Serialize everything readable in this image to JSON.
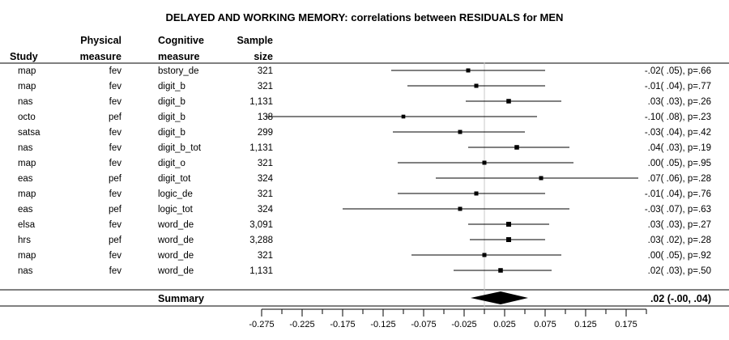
{
  "chart_data": {
    "type": "forest",
    "title": "DELAYED AND WORKING MEMORY: correlations between RESIDUALS for MEN",
    "columns": {
      "study": [
        "Study"
      ],
      "physical": [
        "Physical",
        "measure"
      ],
      "cognitive": [
        "Cognitive",
        "measure"
      ],
      "sample": [
        "Sample",
        "size"
      ]
    },
    "rows": [
      {
        "study": "map",
        "physical": "fev",
        "cognitive": "bstory_de",
        "n": "321",
        "est": -0.02,
        "lo": -0.115,
        "hi": 0.075,
        "label": "-.02( .05), p=.66"
      },
      {
        "study": "map",
        "physical": "fev",
        "cognitive": "digit_b",
        "n": "321",
        "est": -0.01,
        "lo": -0.095,
        "hi": 0.075,
        "label": "-.01( .04), p=.77"
      },
      {
        "study": "nas",
        "physical": "fev",
        "cognitive": "digit_b",
        "n": "1,131",
        "est": 0.03,
        "lo": -0.023,
        "hi": 0.095,
        "label": ".03( .03), p=.26"
      },
      {
        "study": "octo",
        "physical": "pef",
        "cognitive": "digit_b",
        "n": "138",
        "est": -0.1,
        "lo": -0.27,
        "hi": 0.065,
        "label": "-.10( .08), p=.23"
      },
      {
        "study": "satsa",
        "physical": "fev",
        "cognitive": "digit_b",
        "n": "299",
        "est": -0.03,
        "lo": -0.113,
        "hi": 0.05,
        "label": "-.03( .04), p=.42"
      },
      {
        "study": "nas",
        "physical": "fev",
        "cognitive": "digit_b_tot",
        "n": "1,131",
        "est": 0.04,
        "lo": -0.02,
        "hi": 0.105,
        "label": ".04( .03), p=.19"
      },
      {
        "study": "map",
        "physical": "fev",
        "cognitive": "digit_o",
        "n": "321",
        "est": 0.0,
        "lo": -0.107,
        "hi": 0.11,
        "label": ".00( .05), p=.95"
      },
      {
        "study": "eas",
        "physical": "pef",
        "cognitive": "digit_tot",
        "n": "324",
        "est": 0.07,
        "lo": -0.06,
        "hi": 0.19,
        "label": ".07( .06), p=.28"
      },
      {
        "study": "map",
        "physical": "fev",
        "cognitive": "logic_de",
        "n": "321",
        "est": -0.01,
        "lo": -0.107,
        "hi": 0.075,
        "label": "-.01( .04), p=.76"
      },
      {
        "study": "eas",
        "physical": "pef",
        "cognitive": "logic_tot",
        "n": "324",
        "est": -0.03,
        "lo": -0.175,
        "hi": 0.105,
        "label": "-.03( .07), p=.63"
      },
      {
        "study": "elsa",
        "physical": "fev",
        "cognitive": "word_de",
        "n": "3,091",
        "est": 0.03,
        "lo": -0.02,
        "hi": 0.08,
        "label": ".03( .03), p=.27"
      },
      {
        "study": "hrs",
        "physical": "pef",
        "cognitive": "word_de",
        "n": "3,288",
        "est": 0.03,
        "lo": -0.018,
        "hi": 0.075,
        "label": ".03( .02), p=.28"
      },
      {
        "study": "map",
        "physical": "fev",
        "cognitive": "word_de",
        "n": "321",
        "est": 0.0,
        "lo": -0.09,
        "hi": 0.095,
        "label": ".00( .05), p=.92"
      },
      {
        "study": "nas",
        "physical": "fev",
        "cognitive": "word_de",
        "n": "1,131",
        "est": 0.02,
        "lo": -0.038,
        "hi": 0.083,
        "label": ".02( .03), p=.50"
      }
    ],
    "summary": {
      "label": "Summary",
      "est": 0.02,
      "lo": -0.003,
      "hi": 0.04,
      "text": ".02 (-.00, .04)"
    },
    "xlim": [
      -0.275,
      0.2
    ],
    "ticks": [
      -0.275,
      -0.225,
      -0.175,
      -0.125,
      -0.075,
      -0.025,
      0.025,
      0.075,
      0.125,
      0.175
    ],
    "tick_labels": [
      "-0.275",
      "-0.225",
      "-0.175",
      "-0.125",
      "-0.075",
      "-0.025",
      "0.025",
      "0.075",
      "0.125",
      "0.175"
    ],
    "reference_line": 0.0,
    "grid": false
  }
}
